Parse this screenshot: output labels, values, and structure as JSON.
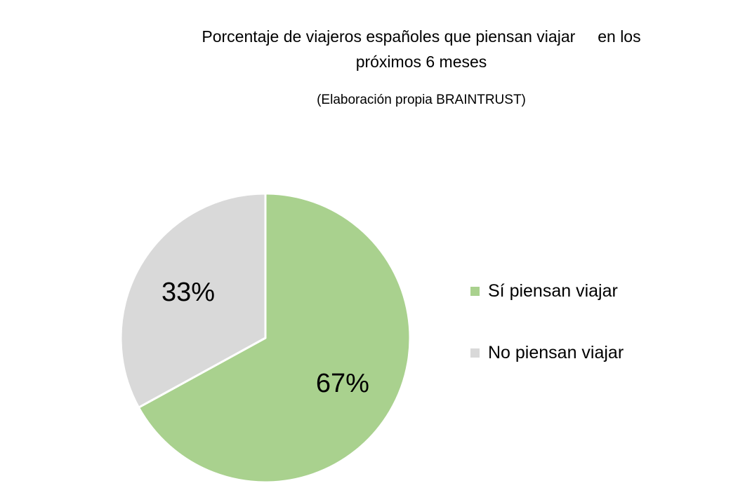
{
  "chart_data": {
    "type": "pie",
    "title_lines": [
      "Porcentaje de viajeros españoles que piensan viajar     en los",
      "próximos 6 meses"
    ],
    "subtitle": "(Elaboración propia BRAINTRUST)",
    "legend_position": "right",
    "slices": [
      {
        "label": "Sí piensan viajar",
        "value": 67,
        "display": "67%",
        "color": "#a9d18e"
      },
      {
        "label": "No piensan viajar",
        "value": 33,
        "display": "33%",
        "color": "#d9d9d9"
      }
    ]
  }
}
